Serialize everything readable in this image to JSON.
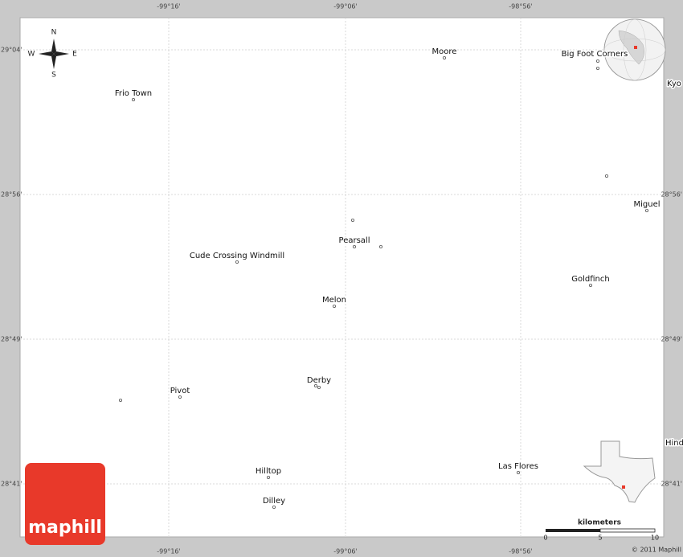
{
  "map": {
    "lon_labels_top": [
      "-99°16'",
      "-99°06'",
      "-98°56'"
    ],
    "lon_labels_bottom": [
      "-99°16'",
      "-99°06'",
      "-98°56'"
    ],
    "lat_labels_left": [
      "29°04'",
      "28°56'",
      "28°49'",
      "28°41'"
    ],
    "lat_labels_right": [
      "28°56'",
      "28°49'",
      "28°41'"
    ],
    "places": [
      {
        "name": "Frio Town"
      },
      {
        "name": "Moore"
      },
      {
        "name": "Big Foot Corners"
      },
      {
        "name": "Kyo"
      },
      {
        "name": "Miguel"
      },
      {
        "name": "Pearsall"
      },
      {
        "name": "Cude Crossing Windmill"
      },
      {
        "name": "Goldfinch"
      },
      {
        "name": "Melon"
      },
      {
        "name": "Derby"
      },
      {
        "name": "Pivot"
      },
      {
        "name": "Hind"
      },
      {
        "name": "Hilltop"
      },
      {
        "name": "Las Flores"
      },
      {
        "name": "Dilley"
      }
    ],
    "compass": {
      "n": "N",
      "s": "S",
      "w": "W",
      "e": "E"
    },
    "scale": {
      "title": "kilometers",
      "ticks": [
        0,
        5,
        10
      ]
    },
    "logo": "maphill",
    "copyright": "© 2011 Maphill"
  }
}
